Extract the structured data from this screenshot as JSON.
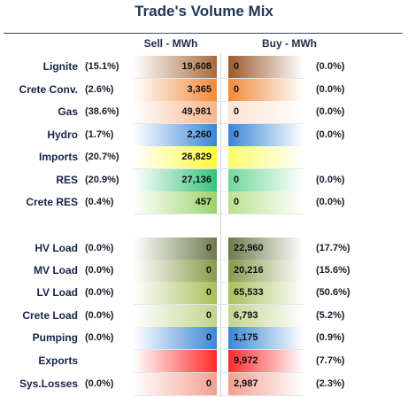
{
  "title": "Trade's Volume Mix",
  "columns": {
    "sell": "Sell - MWh",
    "buy": "Buy - MWh"
  },
  "chart_data": {
    "type": "table",
    "title": "Trade's Volume Mix",
    "columns": [
      "Sell - MWh",
      "Buy - MWh"
    ],
    "rows": [
      {
        "label": "Lignite",
        "sell_pct": "(15.1%)",
        "sell": "19,608",
        "buy": "0",
        "buy_pct": "(0.0%)",
        "sell_color": "#a86b3c",
        "buy_color": "#9b5a2c"
      },
      {
        "label": "Crete Conv.",
        "sell_pct": "(2.6%)",
        "sell": "3,365",
        "buy": "0",
        "buy_pct": "(0.0%)",
        "sell_color": "#f08a3a",
        "buy_color": "#f08a3a"
      },
      {
        "label": "Gas",
        "sell_pct": "(38.6%)",
        "sell": "49,981",
        "buy": "0",
        "buy_pct": "(0.0%)",
        "sell_color": "#f7b48a",
        "buy_color": "#fde4d2"
      },
      {
        "label": "Hydro",
        "sell_pct": "(1.7%)",
        "sell": "2,260",
        "buy": "0",
        "buy_pct": "(0.0%)",
        "sell_color": "#3a86d6",
        "buy_color": "#3a86d6"
      },
      {
        "label": "Imports",
        "sell_pct": "(20.7%)",
        "sell": "26,829",
        "buy": "",
        "buy_pct": "",
        "sell_color": "#fbfb3a",
        "buy_color": "#fbfb6a"
      },
      {
        "label": "RES",
        "sell_pct": "(20.9%)",
        "sell": "27,136",
        "buy": "0",
        "buy_pct": "(0.0%)",
        "sell_color": "#34c27a",
        "buy_color": "#6fd89a"
      },
      {
        "label": "Crete RES",
        "sell_pct": "(0.4%)",
        "sell": "457",
        "buy": "0",
        "buy_pct": "(0.0%)",
        "sell_color": "#9bd46a",
        "buy_color": "#b8e28f"
      },
      {
        "label": "HV Load",
        "sell_pct": "(0.0%)",
        "sell": "0",
        "buy": "22,960",
        "buy_pct": "(17.7%)",
        "sell_color": "#6e7a4c",
        "buy_color": "#6e7a4c"
      },
      {
        "label": "MV Load",
        "sell_pct": "(0.0%)",
        "sell": "0",
        "buy": "20,216",
        "buy_pct": "(15.6%)",
        "sell_color": "#8a9a4c",
        "buy_color": "#8a9a4c"
      },
      {
        "label": "LV Load",
        "sell_pct": "(0.0%)",
        "sell": "0",
        "buy": "65,533",
        "buy_pct": "(50.6%)",
        "sell_color": "#a8c05a",
        "buy_color": "#a8c05a"
      },
      {
        "label": "Crete Load",
        "sell_pct": "(0.0%)",
        "sell": "0",
        "buy": "6,793",
        "buy_pct": "(5.2%)",
        "sell_color": "#c2d48c",
        "buy_color": "#c2d48c"
      },
      {
        "label": "Pumping",
        "sell_pct": "(0.0%)",
        "sell": "0",
        "buy": "1,175",
        "buy_pct": "(0.9%)",
        "sell_color": "#3a86d6",
        "buy_color": "#3a86d6"
      },
      {
        "label": "Exports",
        "sell_pct": "",
        "sell": "",
        "buy": "9,972",
        "buy_pct": "(7.7%)",
        "sell_color": "#ff2a2a",
        "buy_color": "#ff2a2a"
      },
      {
        "label": "Sys.Losses",
        "sell_pct": "(0.0%)",
        "sell": "0",
        "buy": "2,987",
        "buy_pct": "(2.3%)",
        "sell_color": "#f2a090",
        "buy_color": "#f2a090"
      }
    ]
  }
}
